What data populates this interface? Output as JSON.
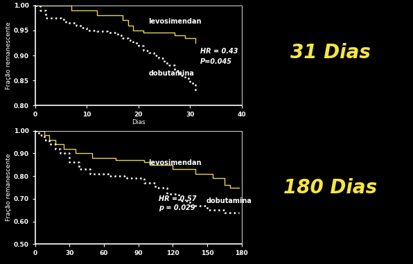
{
  "chart_data": [
    {
      "type": "line",
      "title": "31 Dias",
      "x_label": "Dias",
      "y_label": "Fração remanescente",
      "annotations": [
        "HR = 0.43",
        "P=0.045"
      ],
      "xlim": [
        0,
        40
      ],
      "xticks": [
        0,
        10,
        20,
        30,
        40
      ],
      "ylim": [
        0.8,
        1.0
      ],
      "yticks": [
        {
          "value": 0.8,
          "label": "0.80"
        },
        {
          "value": 0.85,
          "label": "0.85"
        },
        {
          "value": 0.9,
          "label": "0.90"
        },
        {
          "value": 0.95,
          "label": "0.95"
        },
        {
          "value": 1.0,
          "label": "1.00"
        }
      ],
      "grid": false,
      "series": [
        {
          "name": "levosimendan",
          "color": "#e8d44d",
          "line_style": "solid",
          "x": [
            0,
            7,
            12,
            17,
            18,
            19,
            21,
            27,
            29,
            31
          ],
          "values": [
            1.0,
            0.99,
            0.98,
            0.97,
            0.96,
            0.95,
            0.945,
            0.94,
            0.935,
            0.925
          ]
        },
        {
          "name": "dobutamina",
          "color": "#ffffff",
          "line_style": "dotted",
          "x": [
            0,
            1,
            2,
            5,
            6,
            8,
            9,
            10,
            12,
            14,
            16,
            17,
            18,
            19,
            20,
            21,
            22,
            23,
            24,
            25,
            26,
            27,
            28,
            29,
            30,
            31
          ],
          "values": [
            1.0,
            0.99,
            0.975,
            0.972,
            0.965,
            0.96,
            0.955,
            0.95,
            0.948,
            0.945,
            0.94,
            0.935,
            0.93,
            0.925,
            0.92,
            0.91,
            0.905,
            0.9,
            0.895,
            0.885,
            0.88,
            0.87,
            0.86,
            0.855,
            0.845,
            0.83
          ]
        }
      ]
    },
    {
      "type": "line",
      "title": "180 Dias",
      "y_label": "Fração remanescente",
      "annotations": [
        "HR = 0.57",
        "p = 0.029"
      ],
      "xlim": [
        0,
        180
      ],
      "xticks": [
        0,
        30,
        60,
        90,
        120,
        150,
        180
      ],
      "ylim": [
        0.5,
        1.0
      ],
      "yticks": [
        {
          "value": 0.5,
          "label": "0.50"
        },
        {
          "value": 0.6,
          "label": "0.60"
        },
        {
          "value": 0.7,
          "label": "0.70"
        },
        {
          "value": 0.8,
          "label": "0.80"
        },
        {
          "value": 0.9,
          "label": "0.90"
        },
        {
          "value": 1.0,
          "label": "1.00"
        }
      ],
      "grid": false,
      "series": [
        {
          "name": "levosimendan",
          "color": "#e8d44d",
          "line_style": "solid",
          "x": [
            0,
            8,
            12,
            18,
            25,
            35,
            50,
            70,
            95,
            100,
            120,
            140,
            155,
            165,
            170,
            178
          ],
          "values": [
            1.0,
            0.98,
            0.96,
            0.94,
            0.92,
            0.9,
            0.88,
            0.87,
            0.86,
            0.85,
            0.83,
            0.81,
            0.79,
            0.76,
            0.75,
            0.75
          ]
        },
        {
          "name": "dobutamina",
          "color": "#ffffff",
          "line_style": "dotted",
          "x": [
            0,
            3,
            8,
            12,
            18,
            22,
            30,
            38,
            48,
            65,
            80,
            95,
            105,
            115,
            125,
            135,
            150,
            165,
            178
          ],
          "values": [
            1.0,
            0.98,
            0.96,
            0.94,
            0.92,
            0.9,
            0.86,
            0.83,
            0.81,
            0.8,
            0.79,
            0.77,
            0.75,
            0.72,
            0.69,
            0.67,
            0.65,
            0.64,
            0.64
          ]
        }
      ]
    }
  ]
}
